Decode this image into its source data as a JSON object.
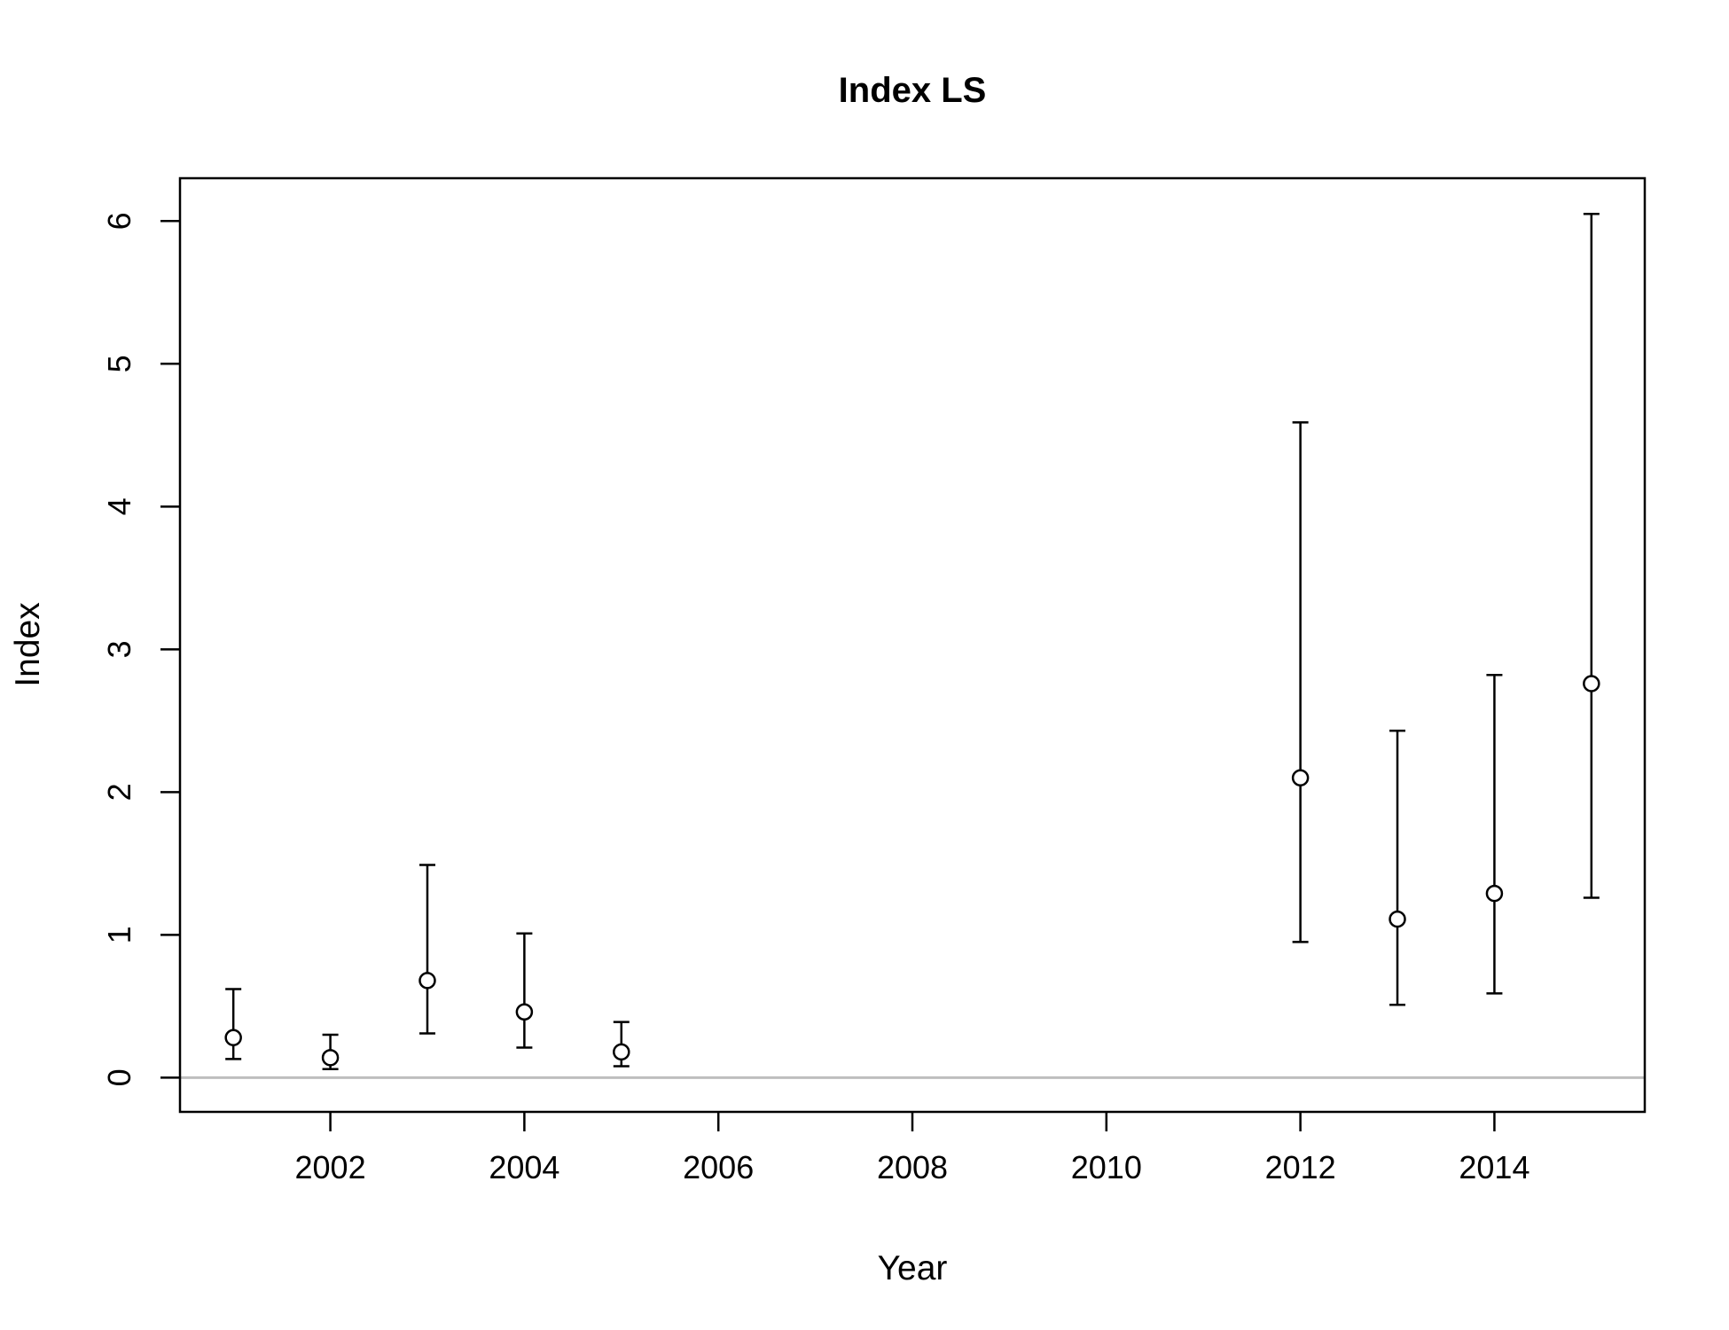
{
  "chart_data": {
    "type": "scatter",
    "title": "Index LS",
    "xlabel": "Year",
    "ylabel": "Index",
    "xlim": [
      2000.45,
      2015.55
    ],
    "ylim": [
      -0.24,
      6.3
    ],
    "x_ticks": [
      2002,
      2004,
      2006,
      2008,
      2010,
      2012,
      2014
    ],
    "y_ticks": [
      0,
      1,
      2,
      3,
      4,
      5,
      6
    ],
    "x_tick_labels": [
      "2002",
      "2004",
      "2006",
      "2008",
      "2010",
      "2012",
      "2014"
    ],
    "y_tick_labels": [
      "0",
      "1",
      "2",
      "3",
      "4",
      "5",
      "6"
    ],
    "reference_line": {
      "y": 0,
      "color": "#bebebe"
    },
    "grid": false,
    "error_bars": true,
    "points": [
      {
        "x": 2001,
        "y": 0.28,
        "lower": 0.13,
        "upper": 0.62
      },
      {
        "x": 2002,
        "y": 0.14,
        "lower": 0.06,
        "upper": 0.3
      },
      {
        "x": 2003,
        "y": 0.68,
        "lower": 0.31,
        "upper": 1.49
      },
      {
        "x": 2004,
        "y": 0.46,
        "lower": 0.21,
        "upper": 1.01
      },
      {
        "x": 2005,
        "y": 0.18,
        "lower": 0.08,
        "upper": 0.39
      },
      {
        "x": 2012,
        "y": 2.1,
        "lower": 0.95,
        "upper": 4.59
      },
      {
        "x": 2013,
        "y": 1.11,
        "lower": 0.51,
        "upper": 2.43
      },
      {
        "x": 2014,
        "y": 1.29,
        "lower": 0.59,
        "upper": 2.82
      },
      {
        "x": 2015,
        "y": 2.76,
        "lower": 1.26,
        "upper": 6.05
      }
    ]
  }
}
